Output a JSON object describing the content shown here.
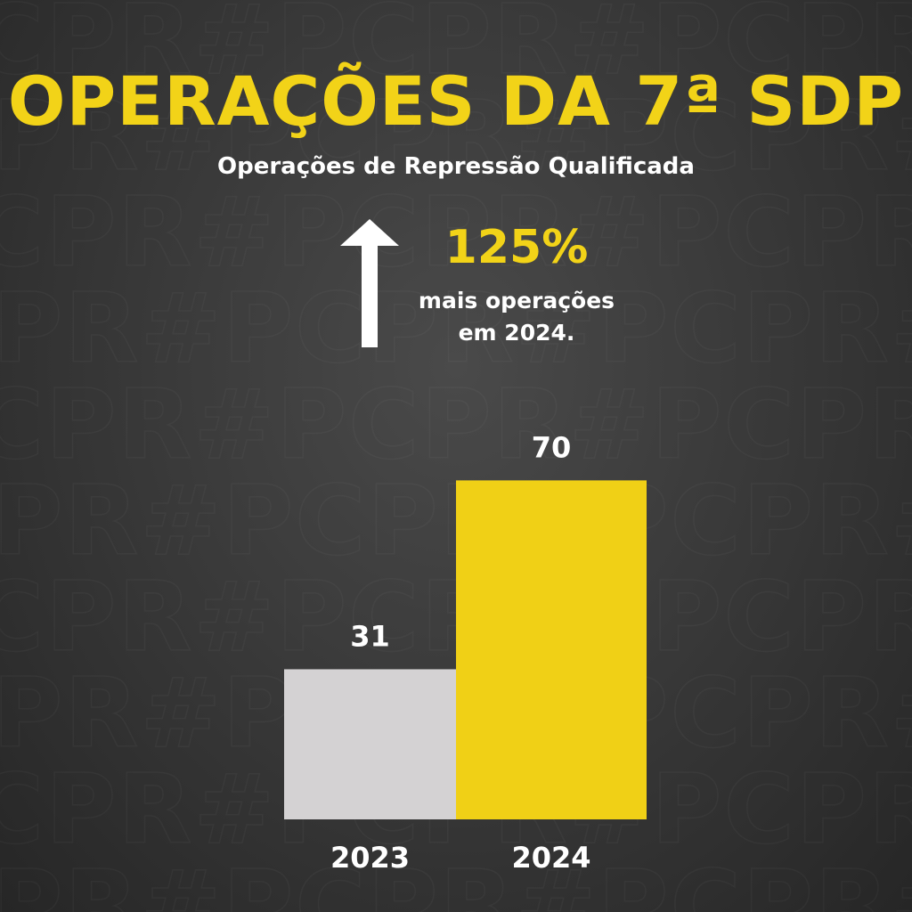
{
  "header": {
    "title": "OPERAÇÕES DA 7ª SDP",
    "subtitle": "Operações de Repressão Qualificada"
  },
  "highlight": {
    "percent": "125%",
    "line1": "mais operações",
    "line2": "em 2024.",
    "icon": "arrow-up-icon"
  },
  "watermark_text": "CPR#PCPR#PCPR#PCPR#PCPR#",
  "colors": {
    "accent": "#f2d318",
    "bar_2023": "#d4d2d3",
    "bar_2024": "#f0d016",
    "text": "#ffffff"
  },
  "chart_data": {
    "type": "bar",
    "categories": [
      "2023",
      "2024"
    ],
    "values": [
      31,
      70
    ],
    "title": "",
    "xlabel": "",
    "ylabel": "",
    "ylim": [
      0,
      84.6
    ],
    "grid": false,
    "legend": "none"
  }
}
